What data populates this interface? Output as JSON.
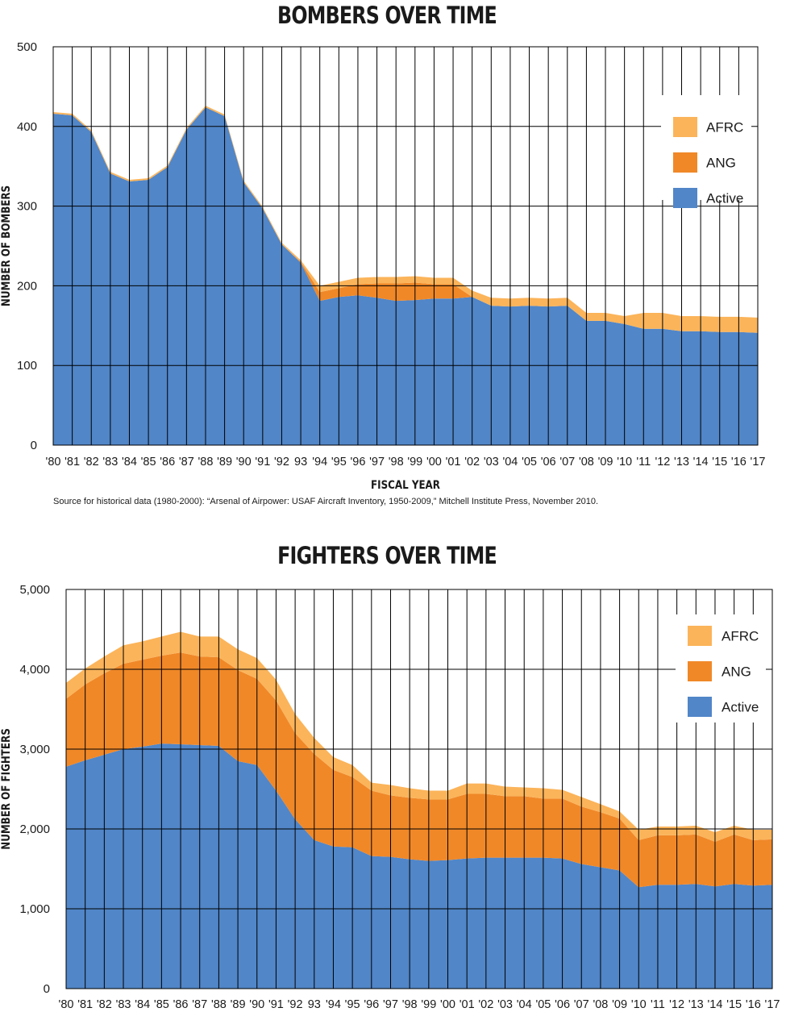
{
  "chart_data": [
    {
      "type": "area",
      "stacked": true,
      "title": "BOMBERS OVER TIME",
      "xlabel": "FISCAL YEAR",
      "ylabel": "NUMBER OF BOMBERS",
      "ylim": [
        0,
        500
      ],
      "yticks": [
        "0",
        "100",
        "200",
        "300",
        "400",
        "500"
      ],
      "categories": [
        "'80",
        "'81",
        "'82",
        "'83",
        "'84",
        "'85",
        "'86",
        "'87",
        "'88",
        "'89",
        "'90",
        "'91",
        "'92",
        "'93",
        "'94",
        "'95",
        "'96",
        "'97",
        "'98",
        "'99",
        "'00",
        "'01",
        "'02",
        "'03",
        "'04",
        "'05",
        "'06",
        "'07",
        "'08",
        "'09",
        "'10",
        "'11",
        "'12",
        "'13",
        "'14",
        "'15",
        "'16",
        "'17"
      ],
      "xtick_labels": [
        "'80",
        "'81",
        "'82",
        "'83",
        "'84",
        "'85",
        "'86",
        "'87",
        "'88",
        "'89",
        "'90",
        "'91",
        "'92",
        "93",
        "'94",
        "'95",
        "'96",
        "'97",
        "'98",
        "'99",
        "'00",
        "'01",
        "'02",
        "'03",
        "'04",
        "'05",
        "'06",
        "'07",
        "'08",
        "'09",
        "'10",
        "'11",
        "'12",
        "'13",
        "'14",
        "'15",
        "'16",
        "'17"
      ],
      "grid": true,
      "legend_position": "top-right",
      "series": [
        {
          "name": "Active",
          "color": "#5186c8",
          "values": [
            416,
            414,
            393,
            341,
            331,
            333,
            349,
            396,
            424,
            413,
            330,
            297,
            252,
            229,
            181,
            186,
            188,
            185,
            181,
            182,
            184,
            184,
            186,
            175,
            174,
            175,
            174,
            175,
            156,
            156,
            152,
            146,
            146,
            143,
            143,
            142,
            142,
            141
          ]
        },
        {
          "name": "ANG",
          "color": "#f08828",
          "values": [
            0,
            0,
            0,
            0,
            0,
            0,
            0,
            0,
            0,
            0,
            0,
            0,
            0,
            1,
            11,
            11,
            14,
            18,
            22,
            22,
            18,
            18,
            0,
            0,
            0,
            0,
            0,
            0,
            0,
            0,
            0,
            0,
            0,
            0,
            0,
            0,
            0,
            0
          ]
        },
        {
          "name": "AFRC",
          "color": "#fbb45a",
          "values": [
            2,
            2,
            2,
            2,
            2,
            2,
            2,
            2,
            2,
            2,
            2,
            2,
            2,
            2,
            8,
            8,
            8,
            8,
            8,
            8,
            8,
            8,
            8,
            10,
            10,
            10,
            10,
            10,
            10,
            10,
            10,
            20,
            20,
            19,
            19,
            19,
            19,
            19
          ]
        }
      ],
      "source_note": "Source for historical data (1980-2000): “Arsenal of Airpower: USAF Aircraft Inventory, 1950-2009,” Mitchell Institute Press, November 2010."
    },
    {
      "type": "area",
      "stacked": true,
      "title": "FIGHTERS OVER TIME",
      "xlabel": "",
      "ylabel": "NUMBER OF FIGHTERS",
      "ylim": [
        0,
        5000
      ],
      "yticks": [
        "0",
        "1,000",
        "2,000",
        "3,000",
        "4,000",
        "5,000"
      ],
      "categories": [
        "'80",
        "'81",
        "'82",
        "'83",
        "'84",
        "'85",
        "'86",
        "'87",
        "'88",
        "'89",
        "'90",
        "'91",
        "'92",
        "'93",
        "'94",
        "'95",
        "'96",
        "'97",
        "'98",
        "'99",
        "'00",
        "'01",
        "'02",
        "'03",
        "'04",
        "'05",
        "'06",
        "'07",
        "'08",
        "'09",
        "'10",
        "'11",
        "'12",
        "'13",
        "'14",
        "'15",
        "'16",
        "'17"
      ],
      "xtick_labels": [
        "'80",
        "'81",
        "'82",
        "'83",
        "'84",
        "'85",
        "'86",
        "'87",
        "'88",
        "'89",
        "'90",
        "'91",
        "'92",
        "93",
        "'94",
        "'95",
        "'96",
        "'97",
        "'98",
        "'99",
        "'00",
        "'01",
        "'02",
        "'03",
        "'04",
        "'05",
        "'06",
        "'07",
        "'08",
        "'09",
        "'10",
        "'11",
        "'12",
        "'13",
        "'14",
        "'15",
        "'16",
        "'17"
      ],
      "grid": true,
      "legend_position": "top-right",
      "series": [
        {
          "name": "Active",
          "color": "#5186c8",
          "values": [
            2780,
            2860,
            2930,
            3000,
            3030,
            3070,
            3060,
            3050,
            3040,
            2850,
            2800,
            2480,
            2120,
            1860,
            1780,
            1770,
            1660,
            1650,
            1620,
            1600,
            1610,
            1630,
            1640,
            1640,
            1640,
            1640,
            1630,
            1560,
            1520,
            1480,
            1270,
            1300,
            1300,
            1310,
            1280,
            1310,
            1290,
            1300
          ]
        },
        {
          "name": "ANG",
          "color": "#f08828",
          "values": [
            850,
            950,
            1020,
            1070,
            1090,
            1100,
            1150,
            1110,
            1110,
            1140,
            1080,
            1130,
            1080,
            1080,
            960,
            880,
            820,
            770,
            770,
            770,
            760,
            810,
            800,
            770,
            770,
            740,
            750,
            720,
            690,
            650,
            590,
            620,
            620,
            620,
            560,
            620,
            570,
            570
          ]
        },
        {
          "name": "AFRC",
          "color": "#fbb45a",
          "values": [
            200,
            200,
            210,
            230,
            230,
            240,
            260,
            250,
            260,
            260,
            260,
            260,
            240,
            200,
            160,
            150,
            100,
            130,
            120,
            110,
            110,
            130,
            130,
            120,
            110,
            130,
            110,
            120,
            100,
            90,
            130,
            110,
            110,
            110,
            120,
            110,
            130,
            120
          ]
        }
      ]
    }
  ]
}
